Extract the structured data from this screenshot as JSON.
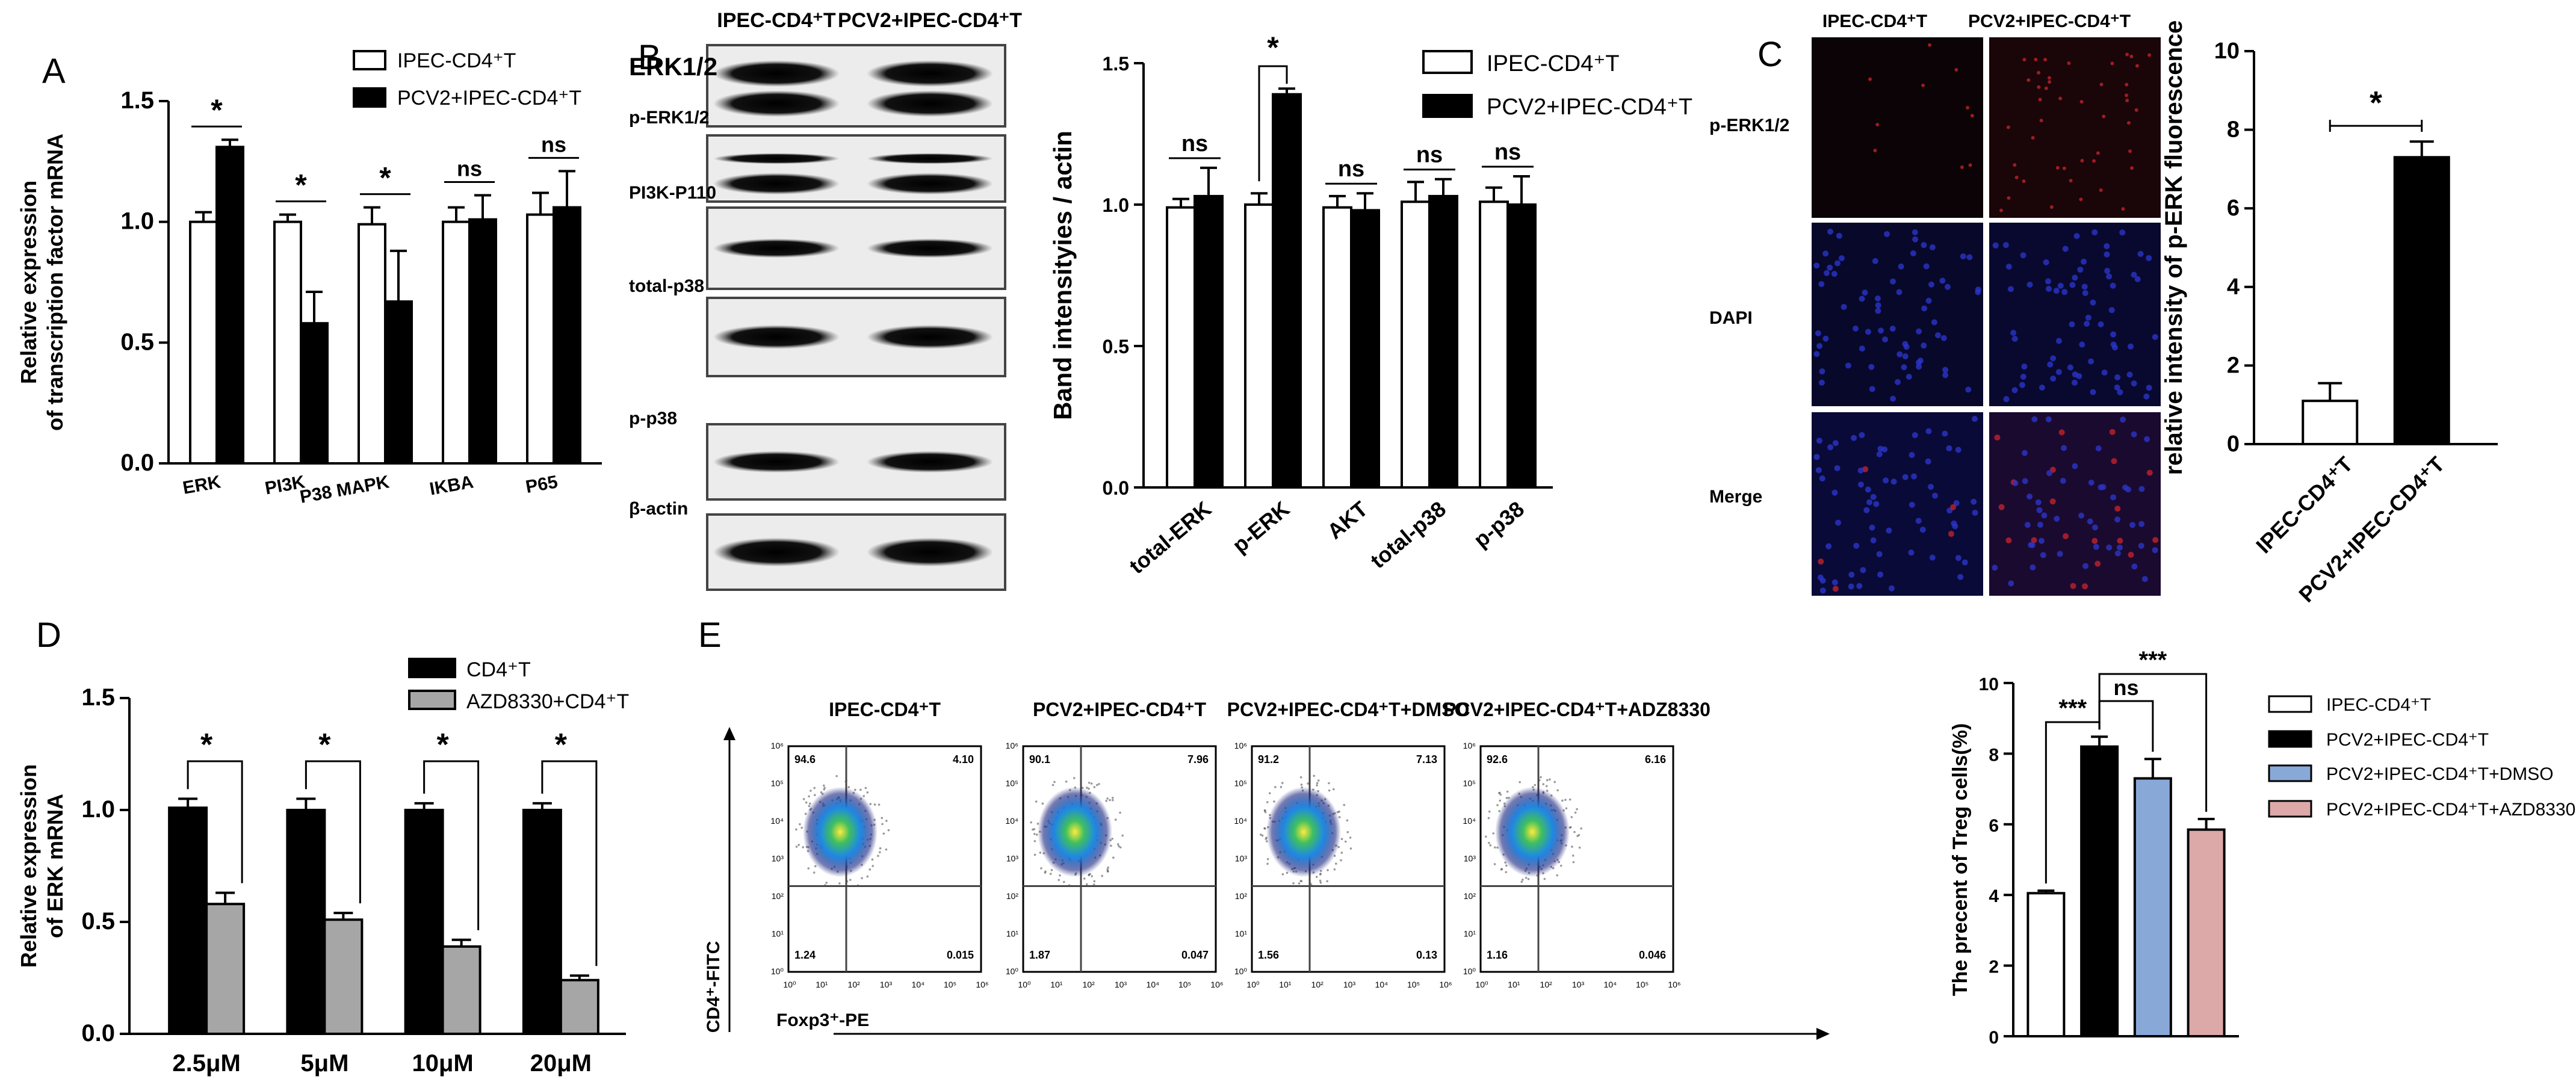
{
  "panels": {
    "A": "A",
    "B": "B",
    "C": "C",
    "D": "D",
    "E": "E"
  },
  "chart_data": [
    {
      "panel": "A",
      "type": "bar",
      "ylabel": [
        "Relative expression",
        "of transcription factor mRNA"
      ],
      "ylim": [
        0,
        1.5
      ],
      "yticks": [
        "0.0",
        "0.5",
        "1.0",
        "1.5"
      ],
      "categories": [
        "ERK",
        "PI3K",
        "P38 MAPK",
        "IKBA",
        "P65"
      ],
      "series": [
        {
          "name": "IPEC-CD4⁺T",
          "values": [
            1.0,
            1.0,
            0.99,
            1.0,
            1.03
          ],
          "err": [
            0.04,
            0.03,
            0.07,
            0.06,
            0.09
          ],
          "color": "#ffffff"
        },
        {
          "name": "PCV2+IPEC-CD4⁺T",
          "values": [
            1.31,
            0.58,
            0.67,
            1.01,
            1.06
          ],
          "err": [
            0.03,
            0.13,
            0.21,
            0.1,
            0.15
          ],
          "color": "#000000"
        }
      ],
      "significance": [
        "*",
        "*",
        "*",
        "ns",
        "ns"
      ],
      "legend": "top-right"
    },
    {
      "panel": "B",
      "type": "bar",
      "ylabel": [
        "Band intensityies / actin"
      ],
      "ylim": [
        0,
        1.5
      ],
      "yticks": [
        "0.0",
        "0.5",
        "1.0",
        "1.5"
      ],
      "categories": [
        "total-ERK",
        "p-ERK",
        "AKT",
        "total-p38",
        "p-p38"
      ],
      "series": [
        {
          "name": "IPEC-CD4⁺T",
          "values": [
            0.99,
            1.0,
            0.99,
            1.01,
            1.01
          ],
          "err": [
            0.03,
            0.04,
            0.04,
            0.07,
            0.05
          ],
          "color": "#ffffff"
        },
        {
          "name": "PCV2+IPEC-CD4⁺T",
          "values": [
            1.03,
            1.39,
            0.98,
            1.03,
            1.0
          ],
          "err": [
            0.1,
            0.02,
            0.06,
            0.06,
            0.1
          ],
          "color": "#000000"
        }
      ],
      "significance": [
        "ns",
        "*",
        "ns",
        "ns",
        "ns"
      ],
      "legend": "top-right"
    },
    {
      "panel": "C",
      "type": "bar",
      "ylabel": [
        "relative intensity of p-ERK fluorescence"
      ],
      "ylim": [
        0,
        10
      ],
      "yticks": [
        "0",
        "2",
        "4",
        "6",
        "8",
        "10"
      ],
      "categories": [
        "IPEC-CD4⁺T",
        "PCV2+IPEC-CD4⁺T"
      ],
      "series": [
        {
          "name": "",
          "values": [
            1.1,
            7.3
          ],
          "err": [
            0.45,
            0.4
          ],
          "colors": [
            "#ffffff",
            "#000000"
          ]
        }
      ],
      "significance": [
        "*"
      ]
    },
    {
      "panel": "D",
      "type": "bar",
      "ylabel": [
        "Relative expression",
        "of ERK mRNA"
      ],
      "ylim": [
        0,
        1.5
      ],
      "yticks": [
        "0.0",
        "0.5",
        "1.0",
        "1.5"
      ],
      "categories": [
        "2.5μM",
        "5μM",
        "10μM",
        "20μM"
      ],
      "series": [
        {
          "name": "CD4⁺T",
          "values": [
            1.01,
            1.0,
            1.0,
            1.0
          ],
          "err": [
            0.04,
            0.05,
            0.03,
            0.03
          ],
          "color": "#000000"
        },
        {
          "name": "AZD8330+CD4⁺T",
          "values": [
            0.58,
            0.51,
            0.39,
            0.24
          ],
          "err": [
            0.05,
            0.03,
            0.03,
            0.02
          ],
          "color": "#a6a6a6"
        }
      ],
      "significance": [
        "*",
        "*",
        "*",
        "*"
      ],
      "legend": "top-right"
    },
    {
      "panel": "E",
      "type": "bar",
      "ylabel": [
        "The precent of Treg cells(%)"
      ],
      "ylim": [
        0,
        10
      ],
      "yticks": [
        "0",
        "2",
        "4",
        "6",
        "8",
        "10"
      ],
      "categories": [
        "IPEC-CD4⁺T",
        "PCV2+IPEC-CD4⁺T",
        "PCV2+IPEC-CD4⁺T+DMSO",
        "PCV2+IPEC-CD4⁺T+AZD8330"
      ],
      "series": [
        {
          "name": "",
          "values": [
            4.05,
            8.2,
            7.3,
            5.85
          ],
          "err": [
            0.07,
            0.28,
            0.55,
            0.3
          ],
          "colors": [
            "#ffffff",
            "#000000",
            "#88a8d8",
            "#dca8a8"
          ]
        }
      ],
      "significance": [
        {
          "pair": [
            0,
            1
          ],
          "label": "***"
        },
        {
          "pair": [
            1,
            2
          ],
          "label": "ns"
        },
        {
          "pair": [
            1,
            3
          ],
          "label": "***"
        }
      ],
      "legend": "right"
    }
  ],
  "western_blot": {
    "columns": [
      "IPEC-CD4⁺T",
      "PCV2+IPEC-CD4⁺T"
    ],
    "rows": [
      "ERK1/2",
      "p-ERK1/2",
      "PI3K-P110",
      "total-p38",
      "p-p38",
      "β-actin"
    ]
  },
  "immunofluorescence": {
    "columns": [
      "IPEC-CD4⁺T",
      "PCV2+IPEC-CD4⁺T"
    ],
    "rows": [
      "p-ERK1/2",
      "DAPI",
      "Merge"
    ]
  },
  "flow_cytometry": {
    "panels": [
      {
        "title": "IPEC-CD4⁺T",
        "q": [
          "94.6",
          "4.10",
          "1.24",
          "0.015"
        ]
      },
      {
        "title": "PCV2+IPEC-CD4⁺T",
        "q": [
          "90.1",
          "7.96",
          "1.87",
          "0.047"
        ]
      },
      {
        "title": "PCV2+IPEC-CD4⁺T+DMSO",
        "q": [
          "91.2",
          "7.13",
          "1.56",
          "0.13"
        ]
      },
      {
        "title": "PCV2+IPEC-CD4⁺T+ADZ8330",
        "q": [
          "92.6",
          "6.16",
          "1.16",
          "0.046"
        ]
      }
    ],
    "ylabel": "CD4⁺-FITC",
    "xlabel": "Foxp3⁺-PE"
  }
}
